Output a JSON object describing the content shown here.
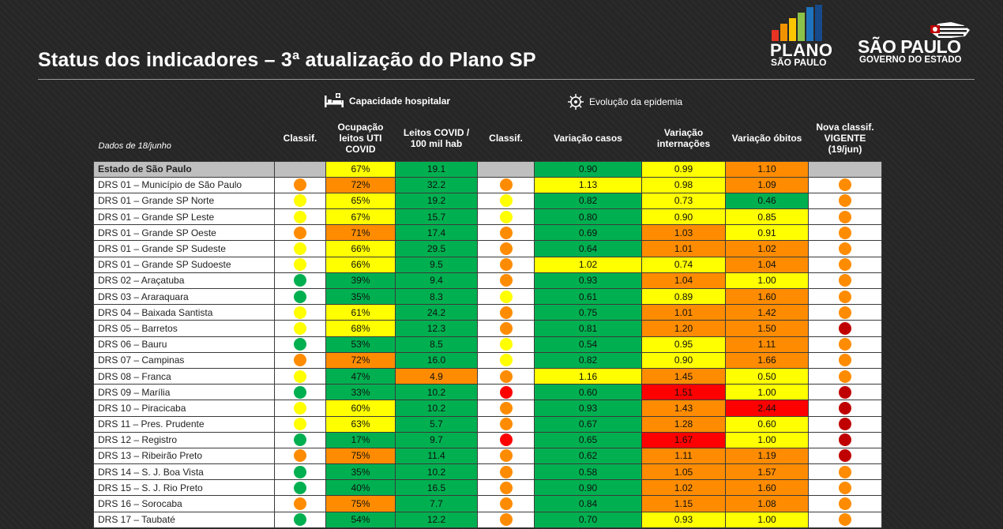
{
  "title": "Status dos indicadores – 3ª atualização do Plano SP",
  "logos": {
    "plano_line1": "PLANO",
    "plano_line2": "SÃO PAULO",
    "sp_line1": "SÃO PAULO",
    "sp_line2": "GOVERNO DO ESTADO"
  },
  "sections": {
    "capacidade": "Capacidade hospitalar",
    "evolucao": "Evolução da epidemia"
  },
  "headers": {
    "date": "Dados de 18/junho",
    "classif": "Classif.",
    "ocupacao": "Ocupação leitos UTI COVID",
    "leitos": "Leitos COVID / 100 mil hab",
    "classif2": "Classif.",
    "casos": "Variação casos",
    "internacoes": "Variação internações",
    "obitos": "Variação óbitos",
    "nova": "Nova classif. VIGENTE (19/jun)"
  },
  "colors": {
    "green": "#00b050",
    "yellow": "#ffff00",
    "orange": "#ff8c00",
    "red": "#ff0000",
    "dark_red": "#c00000",
    "grey": "#bfbfbf"
  },
  "rows": [
    {
      "name": "Estado de São Paulo",
      "state": true,
      "c1": "",
      "ocup": "67%",
      "ocup_c": "yellow",
      "leit": "19.1",
      "leit_c": "green",
      "c2": "",
      "casos": "0.90",
      "casos_c": "green",
      "int": "0.99",
      "int_c": "yellow",
      "obi": "1.10",
      "obi_c": "orange",
      "nova": ""
    },
    {
      "name": "DRS 01 – Município de São Paulo",
      "c1": "orange",
      "ocup": "72%",
      "ocup_c": "orange",
      "leit": "32.2",
      "leit_c": "green",
      "c2": "orange",
      "casos": "1.13",
      "casos_c": "yellow",
      "int": "0.98",
      "int_c": "yellow",
      "obi": "1.09",
      "obi_c": "orange",
      "nova": "orange"
    },
    {
      "name": "DRS 01 – Grande SP Norte",
      "c1": "yellow",
      "ocup": "65%",
      "ocup_c": "yellow",
      "leit": "19.2",
      "leit_c": "green",
      "c2": "yellow",
      "casos": "0.82",
      "casos_c": "green",
      "int": "0.73",
      "int_c": "yellow",
      "obi": "0.46",
      "obi_c": "green",
      "nova": "orange"
    },
    {
      "name": "DRS 01 – Grande SP Leste",
      "c1": "yellow",
      "ocup": "67%",
      "ocup_c": "yellow",
      "leit": "15.7",
      "leit_c": "green",
      "c2": "yellow",
      "casos": "0.80",
      "casos_c": "green",
      "int": "0.90",
      "int_c": "yellow",
      "obi": "0.85",
      "obi_c": "yellow",
      "nova": "orange"
    },
    {
      "name": "DRS 01 – Grande SP Oeste",
      "c1": "orange",
      "ocup": "71%",
      "ocup_c": "orange",
      "leit": "17.4",
      "leit_c": "green",
      "c2": "orange",
      "casos": "0.69",
      "casos_c": "green",
      "int": "1.03",
      "int_c": "orange",
      "obi": "0.91",
      "obi_c": "yellow",
      "nova": "orange"
    },
    {
      "name": "DRS 01 – Grande SP Sudeste",
      "c1": "yellow",
      "ocup": "66%",
      "ocup_c": "yellow",
      "leit": "29.5",
      "leit_c": "green",
      "c2": "orange",
      "casos": "0.64",
      "casos_c": "green",
      "int": "1.01",
      "int_c": "orange",
      "obi": "1.02",
      "obi_c": "orange",
      "nova": "orange"
    },
    {
      "name": "DRS 01 – Grande SP Sudoeste",
      "c1": "yellow",
      "ocup": "66%",
      "ocup_c": "yellow",
      "leit": "9.5",
      "leit_c": "green",
      "c2": "orange",
      "casos": "1.02",
      "casos_c": "yellow",
      "int": "0.74",
      "int_c": "yellow",
      "obi": "1.04",
      "obi_c": "orange",
      "nova": "orange"
    },
    {
      "name": "DRS 02 – Araçatuba",
      "c1": "green",
      "ocup": "39%",
      "ocup_c": "green",
      "leit": "9.4",
      "leit_c": "green",
      "c2": "orange",
      "casos": "0.93",
      "casos_c": "green",
      "int": "1.04",
      "int_c": "orange",
      "obi": "1.00",
      "obi_c": "yellow",
      "nova": "orange"
    },
    {
      "name": "DRS 03 – Araraquara",
      "c1": "green",
      "ocup": "35%",
      "ocup_c": "green",
      "leit": "8.3",
      "leit_c": "green",
      "c2": "yellow",
      "casos": "0.61",
      "casos_c": "green",
      "int": "0.89",
      "int_c": "yellow",
      "obi": "1.60",
      "obi_c": "orange",
      "nova": "orange"
    },
    {
      "name": "DRS 04 – Baixada Santista",
      "c1": "yellow",
      "ocup": "61%",
      "ocup_c": "yellow",
      "leit": "24.2",
      "leit_c": "green",
      "c2": "orange",
      "casos": "0.75",
      "casos_c": "green",
      "int": "1.01",
      "int_c": "orange",
      "obi": "1.42",
      "obi_c": "orange",
      "nova": "orange"
    },
    {
      "name": "DRS 05 – Barretos",
      "c1": "yellow",
      "ocup": "68%",
      "ocup_c": "yellow",
      "leit": "12.3",
      "leit_c": "green",
      "c2": "orange",
      "casos": "0.81",
      "casos_c": "green",
      "int": "1.20",
      "int_c": "orange",
      "obi": "1.50",
      "obi_c": "orange",
      "nova": "dark_red"
    },
    {
      "name": "DRS 06 – Bauru",
      "c1": "green",
      "ocup": "53%",
      "ocup_c": "green",
      "leit": "8.5",
      "leit_c": "green",
      "c2": "yellow",
      "casos": "0.54",
      "casos_c": "green",
      "int": "0.95",
      "int_c": "yellow",
      "obi": "1.11",
      "obi_c": "orange",
      "nova": "orange"
    },
    {
      "name": "DRS 07 – Campinas",
      "c1": "orange",
      "ocup": "72%",
      "ocup_c": "orange",
      "leit": "16.0",
      "leit_c": "green",
      "c2": "yellow",
      "casos": "0.82",
      "casos_c": "green",
      "int": "0.90",
      "int_c": "yellow",
      "obi": "1.66",
      "obi_c": "orange",
      "nova": "orange"
    },
    {
      "name": "DRS 08 – Franca",
      "c1": "yellow",
      "ocup": "47%",
      "ocup_c": "green",
      "leit": "4.9",
      "leit_c": "orange",
      "c2": "orange",
      "casos": "1.16",
      "casos_c": "yellow",
      "int": "1.45",
      "int_c": "orange",
      "obi": "0.50",
      "obi_c": "yellow",
      "nova": "orange"
    },
    {
      "name": "DRS 09 – Marília",
      "c1": "green",
      "ocup": "33%",
      "ocup_c": "green",
      "leit": "10.2",
      "leit_c": "green",
      "c2": "red",
      "casos": "0.60",
      "casos_c": "green",
      "int": "1.51",
      "int_c": "red",
      "obi": "1.00",
      "obi_c": "yellow",
      "nova": "dark_red"
    },
    {
      "name": "DRS 10 – Piracicaba",
      "c1": "yellow",
      "ocup": "60%",
      "ocup_c": "yellow",
      "leit": "10.2",
      "leit_c": "green",
      "c2": "orange",
      "casos": "0.93",
      "casos_c": "green",
      "int": "1.43",
      "int_c": "orange",
      "obi": "2.44",
      "obi_c": "red",
      "nova": "dark_red"
    },
    {
      "name": "DRS 11 – Pres. Prudente",
      "c1": "yellow",
      "ocup": "63%",
      "ocup_c": "yellow",
      "leit": "5.7",
      "leit_c": "green",
      "c2": "orange",
      "casos": "0.67",
      "casos_c": "green",
      "int": "1.28",
      "int_c": "orange",
      "obi": "0.60",
      "obi_c": "yellow",
      "nova": "dark_red"
    },
    {
      "name": "DRS 12 – Registro",
      "c1": "green",
      "ocup": "17%",
      "ocup_c": "green",
      "leit": "9.7",
      "leit_c": "green",
      "c2": "red",
      "casos": "0.65",
      "casos_c": "green",
      "int": "1.67",
      "int_c": "red",
      "obi": "1.00",
      "obi_c": "yellow",
      "nova": "dark_red"
    },
    {
      "name": "DRS 13 – Ribeirão Preto",
      "c1": "orange",
      "ocup": "75%",
      "ocup_c": "orange",
      "leit": "11.4",
      "leit_c": "green",
      "c2": "orange",
      "casos": "0.62",
      "casos_c": "green",
      "int": "1.11",
      "int_c": "orange",
      "obi": "1.19",
      "obi_c": "orange",
      "nova": "dark_red"
    },
    {
      "name": "DRS 14 – S. J. Boa Vista",
      "c1": "green",
      "ocup": "35%",
      "ocup_c": "green",
      "leit": "10.2",
      "leit_c": "green",
      "c2": "orange",
      "casos": "0.58",
      "casos_c": "green",
      "int": "1.05",
      "int_c": "orange",
      "obi": "1.57",
      "obi_c": "orange",
      "nova": "orange"
    },
    {
      "name": "DRS 15 – S. J. Rio Preto",
      "c1": "green",
      "ocup": "40%",
      "ocup_c": "green",
      "leit": "16.5",
      "leit_c": "green",
      "c2": "orange",
      "casos": "0.90",
      "casos_c": "green",
      "int": "1.02",
      "int_c": "orange",
      "obi": "1.60",
      "obi_c": "orange",
      "nova": "orange"
    },
    {
      "name": "DRS 16 – Sorocaba",
      "c1": "orange",
      "ocup": "75%",
      "ocup_c": "orange",
      "leit": "7.7",
      "leit_c": "green",
      "c2": "orange",
      "casos": "0.84",
      "casos_c": "green",
      "int": "1.15",
      "int_c": "orange",
      "obi": "1.08",
      "obi_c": "orange",
      "nova": "orange"
    },
    {
      "name": "DRS 17 – Taubaté",
      "c1": "green",
      "ocup": "54%",
      "ocup_c": "green",
      "leit": "12.2",
      "leit_c": "green",
      "c2": "orange",
      "casos": "0.70",
      "casos_c": "green",
      "int": "0.93",
      "int_c": "yellow",
      "obi": "1.00",
      "obi_c": "yellow",
      "nova": "orange"
    }
  ]
}
